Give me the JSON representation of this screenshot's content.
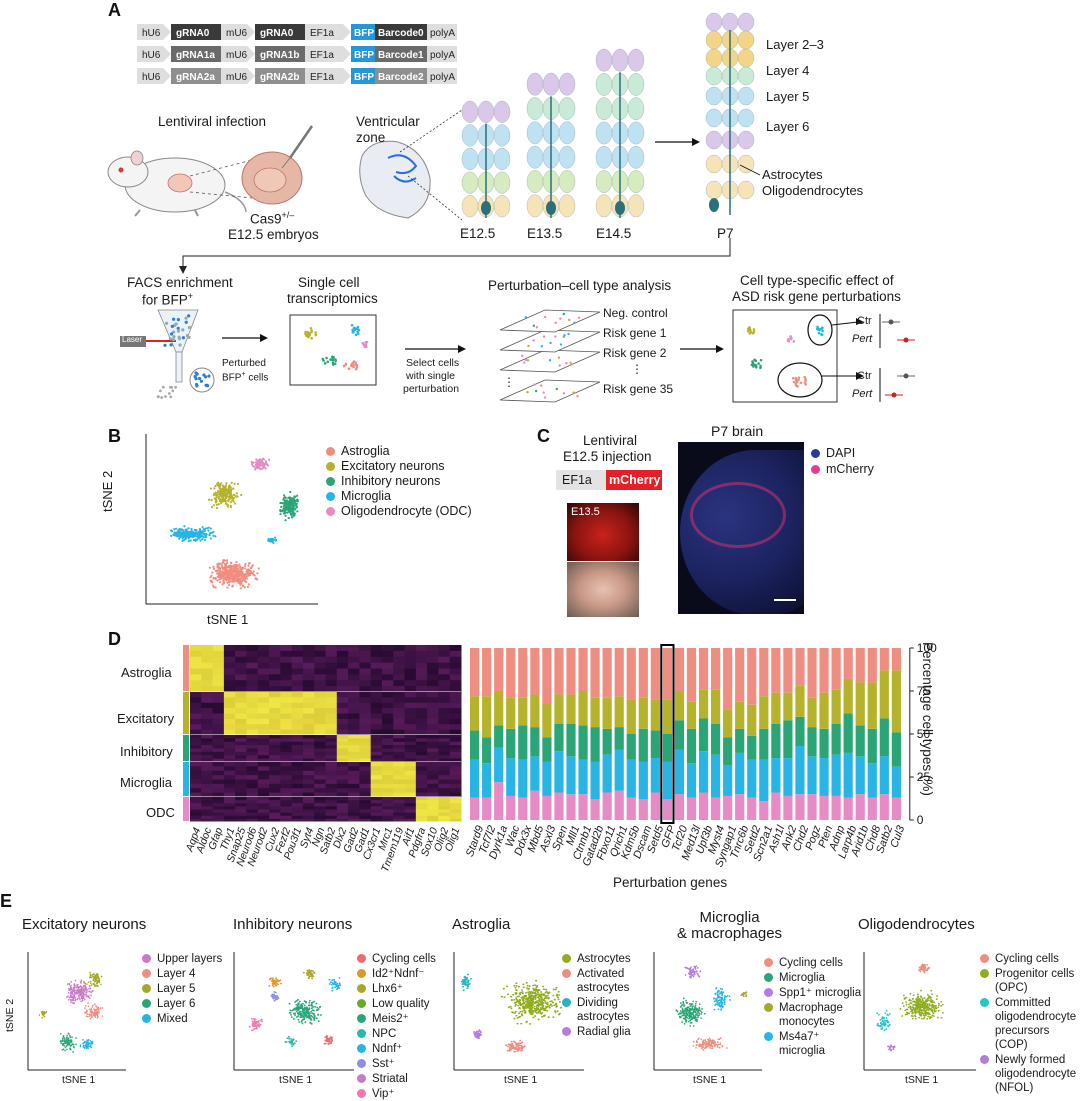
{
  "panels": {
    "a": "A",
    "b": "B",
    "c": "C",
    "d": "D",
    "e": "E"
  },
  "a": {
    "constructs": [
      {
        "hU6": "hU6",
        "g1": "gRNA0",
        "mU6": "mU6",
        "g2": "gRNA0",
        "ef": "EF1a",
        "bfp": "BFP",
        "bc": "Barcode0",
        "pa": "polyA"
      },
      {
        "hU6": "hU6",
        "g1": "gRNA1a",
        "mU6": "mU6",
        "g2": "gRNA1b",
        "ef": "EF1a",
        "bfp": "BFP",
        "bc": "Barcode1",
        "pa": "polyA"
      },
      {
        "hU6": "hU6",
        "g1": "gRNA2a",
        "mU6": "mU6",
        "g2": "gRNA2b",
        "ef": "EF1a",
        "bfp": "BFP",
        "bc": "Barcode2",
        "pa": "polyA"
      }
    ],
    "lentiviral_infection": "Lentiviral infection",
    "cas9": "Cas9",
    "cas9_sup": "+/–",
    "embryos": "E12.5 embryos",
    "ventricular_zone": [
      "Ventricular",
      "zone"
    ],
    "stages": [
      "E12.5",
      "E13.5",
      "E14.5",
      "P7"
    ],
    "layers": [
      "Layer 2–3",
      "Layer 4",
      "Layer 5",
      "Layer 6"
    ],
    "glia": [
      "Astrocytes",
      "Oligodendrocytes"
    ],
    "facs": [
      "FACS enrichment",
      "for BFP"
    ],
    "facs_sup": "+",
    "laser": "Laser",
    "perturbed": [
      "Perturbed",
      "BFP",
      "cells"
    ],
    "perturbed_sup": "+",
    "single_cell": [
      "Single cell",
      "transcriptomics"
    ],
    "select_cells": [
      "Select cells",
      "with single",
      "perturbation"
    ],
    "pert_analysis": "Perturbation–cell type analysis",
    "stack_labels": [
      "Neg. control",
      "Risk gene 1",
      "Risk gene 2",
      "⋮",
      "Risk gene 35"
    ],
    "celltype_effect": [
      "Cell type-specific effect of",
      "ASD risk gene perturbations"
    ],
    "ctr": "Ctr",
    "pert": "Pert"
  },
  "b": {
    "legend": [
      {
        "label": "Astroglia",
        "color": "#ef8e80"
      },
      {
        "label": "Excitatory neurons",
        "color": "#b5b32c"
      },
      {
        "label": "Inhibitory neurons",
        "color": "#2aa576"
      },
      {
        "label": "Microglia",
        "color": "#28b4e4"
      },
      {
        "label": "Oligodendrocyte (ODC)",
        "color": "#e68bc5"
      }
    ],
    "xlabel": "tSNE 1",
    "ylabel": "tSNE 2"
  },
  "c": {
    "title": [
      "Lentiviral",
      "E12.5 injection"
    ],
    "ef1a": "EF1a",
    "mcherry": "mCherry",
    "e135": "E13.5",
    "p7": "P7 brain",
    "legend": [
      {
        "label": "DAPI",
        "color": "#2b3a9a"
      },
      {
        "label": "mCherry",
        "color": "#e23d9a"
      }
    ]
  },
  "d": {
    "row_labels": [
      "Astroglia",
      "Excitatory",
      "Inhibitory",
      "Microglia",
      "ODC"
    ],
    "row_colors": [
      "#ef8e80",
      "#b5b32c",
      "#2aa576",
      "#28b4e4",
      "#e68bc5"
    ],
    "marker_genes": [
      "Aqp4",
      "Aldoc",
      "Gfap",
      "Thy1",
      "Snap25",
      "Neurod6",
      "Neurod2",
      "Cux2",
      "Fezf2",
      "Pou3f1",
      "Syt4",
      "Ngn",
      "Satb2",
      "Dlx2",
      "Gad2",
      "Gad1",
      "Cx3cr1",
      "Mrc1",
      "Tmem119",
      "Aif1",
      "Pdgfra",
      "Sox10",
      "Olig2",
      "Olig1"
    ],
    "xlabel": "Perturbation genes",
    "ylabel": "Percentage cell types (%)",
    "yticks": [
      "0",
      "25",
      "50",
      "75",
      "100"
    ]
  },
  "e": {
    "plots": [
      {
        "title": [
          "Excitatory neurons"
        ],
        "xlabel": "tSNE 1",
        "ylabel": "tSNE 2",
        "legend": [
          {
            "label": "Upper layers",
            "color": "#c77cc7"
          },
          {
            "label": "Layer 4",
            "color": "#ef8e80"
          },
          {
            "label": "Layer 5",
            "color": "#a4a82a"
          },
          {
            "label": "Layer 6",
            "color": "#2aa576"
          },
          {
            "label": "Mixed",
            "color": "#28b4e4"
          }
        ]
      },
      {
        "title": [
          "Inhibitory neurons"
        ],
        "xlabel": "tSNE 1",
        "ylabel": "",
        "legend": [
          {
            "label": "Cycling cells",
            "color": "#ef6a6a"
          },
          {
            "label": "Id2⁺Ndnf⁻",
            "color": "#d99a2a"
          },
          {
            "label": "Lhx6⁺",
            "color": "#a8a82a"
          },
          {
            "label": "Low quality",
            "color": "#6aaa2a"
          },
          {
            "label": "Meis2⁺",
            "color": "#2aa576"
          },
          {
            "label": "NPC",
            "color": "#2ab9a8"
          },
          {
            "label": "Ndnf⁺",
            "color": "#28b4e4"
          },
          {
            "label": "Sst⁺",
            "color": "#8e8ee8"
          },
          {
            "label": "Striatal",
            "color": "#c77cc7"
          },
          {
            "label": "Vip⁺",
            "color": "#ef7ab0"
          }
        ]
      },
      {
        "title": [
          "Astroglia"
        ],
        "xlabel": "tSNE 1",
        "ylabel": "",
        "legend": [
          {
            "label": "Astrocytes",
            "color": "#8fad1f"
          },
          {
            "label": "Activated astrocytes",
            "color": "#ef8e80"
          },
          {
            "label": "Dividing astrocytes",
            "color": "#28b4c4"
          },
          {
            "label": "Radial glia",
            "color": "#b57ce0"
          }
        ]
      },
      {
        "title": [
          "Microglia",
          "& macrophages"
        ],
        "xlabel": "tSNE 1",
        "ylabel": "",
        "legend": [
          {
            "label": "Cycling cells",
            "color": "#ef8e80"
          },
          {
            "label": "Microglia",
            "color": "#2aa576"
          },
          {
            "label": "Spp1⁺ microglia",
            "color": "#b57ce0"
          },
          {
            "label": "Macrophage monocytes",
            "color": "#a4a82a"
          },
          {
            "label": "Ms4a7⁺ microglia",
            "color": "#28b4e4"
          }
        ]
      },
      {
        "title": [
          "Oligodendrocytes"
        ],
        "xlabel": "tSNE 1",
        "ylabel": "",
        "legend": [
          {
            "label": "Cycling cells",
            "color": "#ef8e80"
          },
          {
            "label": "Progenitor cells (OPC)",
            "color": "#8fad1f"
          },
          {
            "label": "Committed oligodendrocyte precursors (COP)",
            "color": "#28c4c4"
          },
          {
            "label": "Newly formed oligodendrocyte (NFOL)",
            "color": "#b57ce0"
          }
        ]
      }
    ]
  },
  "chart_data": {
    "type": "bar",
    "title": "",
    "xlabel": "Perturbation genes",
    "ylabel": "Percentage cell types (%)",
    "ylim": [
      0,
      100
    ],
    "categories": [
      "Stard9",
      "Tcf7l2",
      "Dyrk1a",
      "Wac",
      "Ddx3x",
      "Mbd5",
      "Asxl3",
      "Spen",
      "Mll1",
      "Ctnnb1",
      "Gatad2b",
      "Fbxo11",
      "Qrich1",
      "Kdm5b",
      "Dscam",
      "Setd5",
      "GFP",
      "Tcf20",
      "Med13l",
      "Upf3b",
      "Myst4",
      "Syngap1",
      "Tnrc6b",
      "Setd2",
      "Scn2a1",
      "Ash1l",
      "Ank2",
      "Chd2",
      "Pogz",
      "Pten",
      "Adnp",
      "Larp4b",
      "Arid1b",
      "Chd8",
      "Satb2",
      "Cul3"
    ],
    "highlight": "GFP",
    "series": [
      {
        "name": "ODC",
        "color": "#e68bc5",
        "values": [
          13,
          13,
          22,
          14,
          13,
          17,
          14,
          16,
          15,
          15,
          12,
          16,
          17,
          13,
          12,
          16,
          12,
          15,
          13,
          16,
          13,
          14,
          15,
          13,
          11,
          16,
          14,
          15,
          15,
          14,
          14,
          13,
          15,
          13,
          15,
          13
        ]
      },
      {
        "name": "Microglia",
        "color": "#28b4e4",
        "values": [
          22,
          20,
          20,
          22,
          22,
          20,
          20,
          24,
          22,
          20,
          22,
          22,
          24,
          22,
          22,
          20,
          22,
          26,
          20,
          24,
          25,
          18,
          24,
          22,
          24,
          20,
          22,
          28,
          22,
          22,
          24,
          26,
          22,
          20,
          22,
          18
        ]
      },
      {
        "name": "Inhibitory",
        "color": "#2aa576",
        "values": [
          17,
          15,
          13,
          17,
          20,
          17,
          14,
          16,
          19,
          20,
          20,
          15,
          13,
          15,
          19,
          16,
          16,
          17,
          20,
          19,
          18,
          16,
          14,
          14,
          18,
          20,
          22,
          17,
          17,
          17,
          18,
          23,
          18,
          20,
          22,
          20
        ]
      },
      {
        "name": "Excitatory",
        "color": "#b5b32c",
        "values": [
          20,
          24,
          20,
          18,
          16,
          19,
          20,
          17,
          17,
          20,
          17,
          18,
          18,
          20,
          18,
          18,
          20,
          17,
          16,
          17,
          20,
          16,
          16,
          18,
          19,
          18,
          16,
          18,
          17,
          21,
          20,
          20,
          25,
          27,
          28,
          36
        ]
      },
      {
        "name": "Astroglia",
        "color": "#ef8e80",
        "values": [
          28,
          28,
          25,
          29,
          29,
          27,
          32,
          27,
          27,
          25,
          29,
          29,
          28,
          30,
          29,
          30,
          30,
          25,
          31,
          24,
          24,
          36,
          31,
          33,
          28,
          26,
          26,
          22,
          29,
          26,
          24,
          18,
          20,
          20,
          13,
          13
        ]
      }
    ]
  }
}
